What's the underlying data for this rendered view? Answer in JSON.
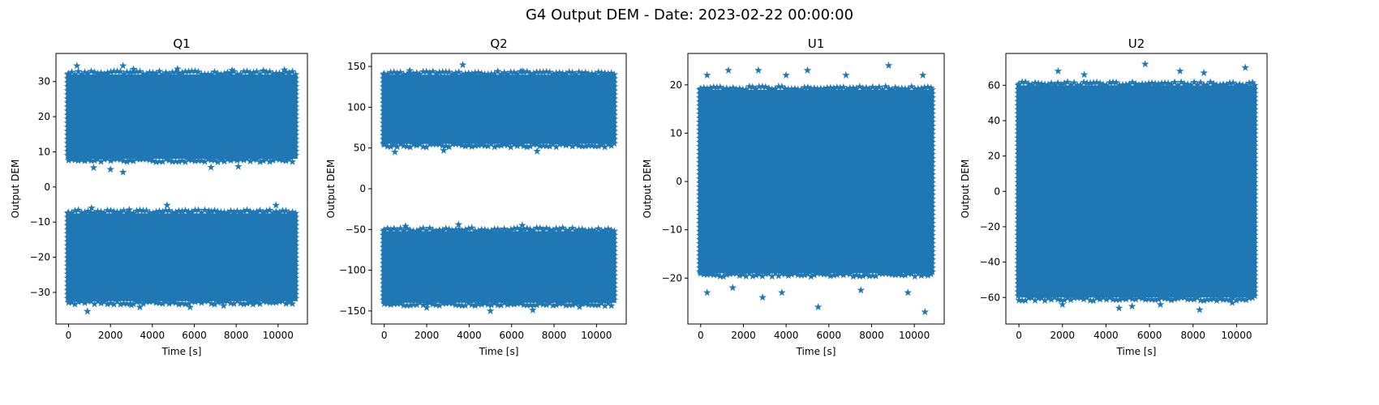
{
  "figure": {
    "suptitle": "G4 Output DEM - Date: 2023-02-22 00:00:00"
  },
  "chart_data": [
    {
      "type": "scatter",
      "title": "Q1",
      "xlabel": "Time [s]",
      "ylabel": "Output DEM",
      "marker": "star",
      "color": "#1f77b4",
      "xlim": [
        -600,
        11400
      ],
      "ylim": [
        -39,
        38
      ],
      "xticks": [
        0,
        2000,
        4000,
        6000,
        8000,
        10000
      ],
      "yticks": [
        -30,
        -20,
        -10,
        0,
        10,
        20,
        30
      ],
      "x_range": [
        0,
        10800
      ],
      "bands": [
        [
          8,
          32
        ],
        [
          -32.5,
          -7.5
        ]
      ],
      "outliers": [
        [
          400,
          34.5
        ],
        [
          2600,
          34.5
        ],
        [
          3100,
          33.5
        ],
        [
          5200,
          33.6
        ],
        [
          7800,
          33.2
        ],
        [
          9300,
          33.1
        ],
        [
          10300,
          33.3
        ],
        [
          1200,
          5.5
        ],
        [
          2000,
          5.0
        ],
        [
          2600,
          4.2
        ],
        [
          6800,
          5.6
        ],
        [
          8100,
          5.8
        ],
        [
          4700,
          -5.2
        ],
        [
          9900,
          -5.2
        ],
        [
          1100,
          -6.0
        ],
        [
          2900,
          -6.5
        ],
        [
          6700,
          -6.8
        ],
        [
          900,
          -35.4
        ],
        [
          3400,
          -34.2
        ],
        [
          5800,
          -34.2
        ],
        [
          7400,
          -33.8
        ],
        [
          3000,
          -33.6
        ],
        [
          8800,
          -33.4
        ]
      ]
    },
    {
      "type": "scatter",
      "title": "Q2",
      "xlabel": "Time [s]",
      "ylabel": "Output DEM",
      "marker": "star",
      "color": "#1f77b4",
      "xlim": [
        -600,
        11400
      ],
      "ylim": [
        -166,
        166
      ],
      "xticks": [
        0,
        2000,
        4000,
        6000,
        8000,
        10000
      ],
      "yticks": [
        -150,
        -100,
        -50,
        0,
        50,
        100,
        150
      ],
      "x_range": [
        0,
        10800
      ],
      "bands": [
        [
          55,
          140
        ],
        [
          -140,
          -52
        ]
      ],
      "outliers": [
        [
          3700,
          152
        ],
        [
          1200,
          145
        ],
        [
          6500,
          144
        ],
        [
          500,
          45
        ],
        [
          2800,
          47
        ],
        [
          7200,
          46
        ],
        [
          6500,
          -45
        ],
        [
          3500,
          -44
        ],
        [
          1000,
          -46
        ],
        [
          5000,
          -150
        ],
        [
          7000,
          -149
        ],
        [
          2000,
          -146
        ],
        [
          9200,
          -145
        ]
      ]
    },
    {
      "type": "scatter",
      "title": "U1",
      "xlabel": "Time [s]",
      "ylabel": "Output DEM",
      "marker": "star",
      "color": "#1f77b4",
      "xlim": [
        -600,
        11400
      ],
      "ylim": [
        -29.5,
        26.5
      ],
      "xticks": [
        0,
        2000,
        4000,
        6000,
        8000,
        10000
      ],
      "yticks": [
        -20,
        -10,
        0,
        10,
        20
      ],
      "x_range": [
        0,
        10800
      ],
      "bands": [
        [
          -19,
          19
        ]
      ],
      "outliers": [
        [
          8800,
          24
        ],
        [
          5000,
          23
        ],
        [
          2700,
          23
        ],
        [
          1300,
          23
        ],
        [
          6800,
          22
        ],
        [
          10400,
          22
        ],
        [
          300,
          22
        ],
        [
          4000,
          22
        ],
        [
          2900,
          -24
        ],
        [
          5500,
          -26
        ],
        [
          10500,
          -27
        ],
        [
          300,
          -23
        ],
        [
          3800,
          -23
        ],
        [
          7500,
          -22.5
        ],
        [
          9700,
          -23
        ],
        [
          1500,
          -22
        ]
      ]
    },
    {
      "type": "scatter",
      "title": "U2",
      "xlabel": "Time [s]",
      "ylabel": "Output DEM",
      "marker": "star",
      "color": "#1f77b4",
      "xlim": [
        -600,
        11400
      ],
      "ylim": [
        -75,
        78
      ],
      "xticks": [
        0,
        2000,
        4000,
        6000,
        8000,
        10000
      ],
      "yticks": [
        -60,
        -40,
        -20,
        0,
        20,
        40,
        60
      ],
      "x_range": [
        0,
        10800
      ],
      "bands": [
        [
          -60,
          60
        ]
      ],
      "outliers": [
        [
          5800,
          72
        ],
        [
          10400,
          70
        ],
        [
          1800,
          68
        ],
        [
          7400,
          68
        ],
        [
          8500,
          67
        ],
        [
          3000,
          66
        ],
        [
          8300,
          -67
        ],
        [
          4600,
          -66
        ],
        [
          5200,
          -65
        ],
        [
          6500,
          -64
        ],
        [
          2000,
          -64
        ],
        [
          9800,
          -63
        ]
      ]
    }
  ]
}
